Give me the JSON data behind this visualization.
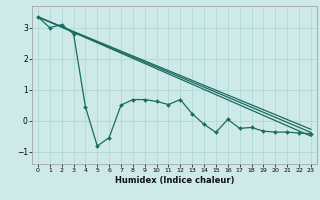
{
  "title": "",
  "xlabel": "Humidex (Indice chaleur)",
  "ylabel": "",
  "bg_color": "#ceeae8",
  "grid_color": "#b2d8d4",
  "line_color": "#1a6b60",
  "xlim": [
    -0.5,
    23.5
  ],
  "ylim": [
    -1.4,
    3.7
  ],
  "xticks": [
    0,
    1,
    2,
    3,
    4,
    5,
    6,
    7,
    8,
    9,
    10,
    11,
    12,
    13,
    14,
    15,
    16,
    17,
    18,
    19,
    20,
    21,
    22,
    23
  ],
  "yticks": [
    -1,
    0,
    1,
    2,
    3
  ],
  "straight_lines": [
    {
      "x": [
        0,
        23
      ],
      "y": [
        3.35,
        -0.5
      ]
    },
    {
      "x": [
        0,
        23
      ],
      "y": [
        3.35,
        -0.38
      ]
    },
    {
      "x": [
        0,
        23
      ],
      "y": [
        3.35,
        -0.28
      ]
    }
  ],
  "main_line": {
    "x": [
      0,
      1,
      2,
      3,
      4,
      5,
      6,
      7,
      8,
      9,
      10,
      11,
      12,
      13,
      14,
      15,
      16,
      17,
      18,
      19,
      20,
      21,
      22,
      23
    ],
    "y": [
      3.35,
      3.0,
      3.1,
      2.8,
      0.45,
      -0.82,
      -0.55,
      0.5,
      0.68,
      0.68,
      0.62,
      0.52,
      0.68,
      0.22,
      -0.12,
      -0.38,
      0.04,
      -0.25,
      -0.22,
      -0.34,
      -0.37,
      -0.37,
      -0.4,
      -0.42
    ]
  }
}
